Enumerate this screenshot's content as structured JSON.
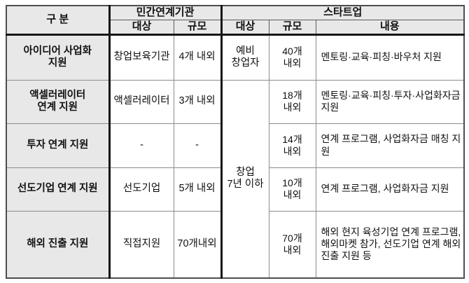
{
  "chart_data": {
    "type": "table",
    "title": "",
    "header": {
      "category": "구 분",
      "private_group": "민간연계기관",
      "startup_group": "스타트업",
      "private_target": "대상",
      "private_scale": "규모",
      "startup_target": "대상",
      "startup_scale": "규모",
      "startup_content": "내용"
    },
    "merged": {
      "startup_target_rows_2_5": "창업\n7년 이하"
    },
    "rows": [
      {
        "category": "아이디어 사업화\n지원",
        "private_target": "창업보육기관",
        "private_scale": "4개 내외",
        "startup_target": "예비\n창업자",
        "startup_scale": "40개\n내외",
        "content": "멘토링·교육·피칭·바우처 지원"
      },
      {
        "category": "액셀러레이터\n연계 지원",
        "private_target": "액셀러레이터",
        "private_scale": "3개 내외",
        "startup_scale": "18개\n내외",
        "content": "멘토링·교육·피칭·투자·사업화자금 지원"
      },
      {
        "category": "투자 연계 지원",
        "private_target": "-",
        "private_scale": "-",
        "startup_scale": "14개\n내외",
        "content": "연계 프로그램, 사업화자금 매칭 지원"
      },
      {
        "category": "선도기업 연계 지원",
        "private_target": "선도기업",
        "private_scale": "5개 내외",
        "startup_scale": "10개\n내외",
        "content": "연계 프로그램, 사업화자금 지원"
      },
      {
        "category": "해외 진출 지원",
        "private_target": "직접지원",
        "private_scale": "70개내외",
        "startup_scale": "70개\n내외",
        "content": "해외 현지 육성기업 연계 프로그램, 해외마켓 참가, 선도기업 연계 해외 진출 지원 등"
      }
    ]
  },
  "colors": {
    "header_bg": "#e8e8e8",
    "thin_border": "#8c8c8c",
    "thick_border": "#161616",
    "outer_border": "#4d4d4d"
  }
}
